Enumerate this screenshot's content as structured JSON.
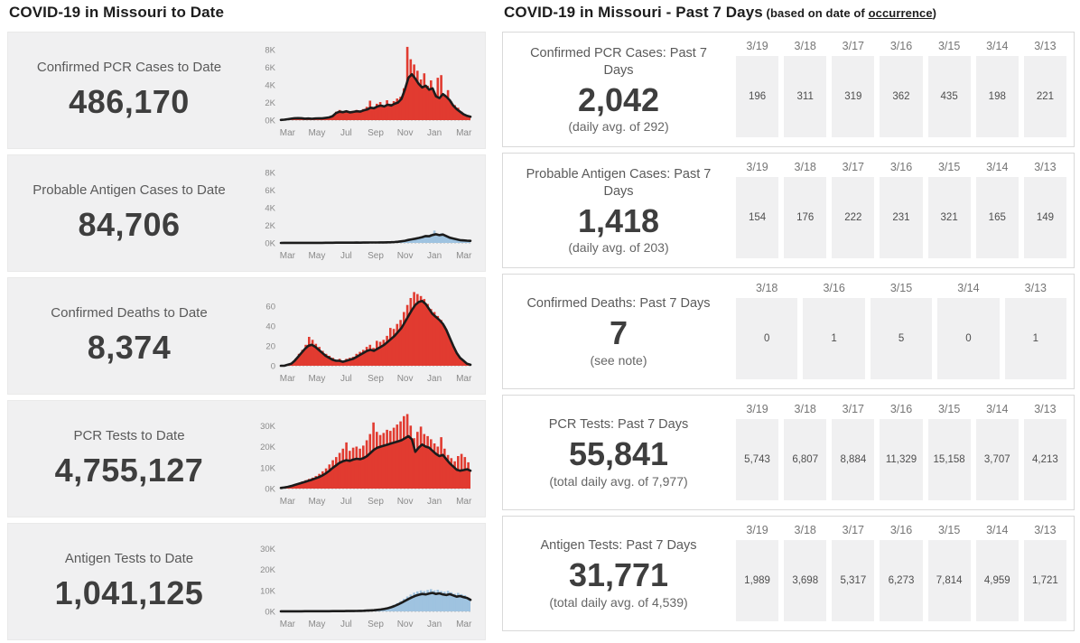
{
  "left_section": {
    "title": "COVID-19 in Missouri to Date",
    "panels": [
      {
        "label": "Confirmed PCR Cases to Date",
        "value": "486,170"
      },
      {
        "label": "Probable Antigen Cases to Date",
        "value": "84,706"
      },
      {
        "label": "Confirmed Deaths to Date",
        "value": "8,374"
      },
      {
        "label": "PCR Tests to Date",
        "value": "4,755,127"
      },
      {
        "label": "Antigen Tests to Date",
        "value": "1,041,125"
      }
    ]
  },
  "right_section": {
    "title": "COVID-19 in Missouri - Past 7 Days",
    "note_prefix": " (based on date of ",
    "note_link": "occurrence",
    "note_suffix": ")",
    "panels": [
      {
        "label": "Confirmed PCR Cases: Past 7 Days",
        "value": "2,042",
        "note": "(daily avg. of 292)",
        "dates": [
          "3/19",
          "3/18",
          "3/17",
          "3/16",
          "3/15",
          "3/14",
          "3/13"
        ],
        "values": [
          "196",
          "311",
          "319",
          "362",
          "435",
          "198",
          "221"
        ]
      },
      {
        "label": "Probable Antigen Cases: Past 7 Days",
        "value": "1,418",
        "note": "(daily avg. of 203)",
        "dates": [
          "3/19",
          "3/18",
          "3/17",
          "3/16",
          "3/15",
          "3/14",
          "3/13"
        ],
        "values": [
          "154",
          "176",
          "222",
          "231",
          "321",
          "165",
          "149"
        ]
      },
      {
        "label": "Confirmed Deaths: Past 7 Days",
        "value": "7",
        "note": "(see note)",
        "dates": [
          "3/18",
          "3/16",
          "3/15",
          "3/14",
          "3/13"
        ],
        "values": [
          "0",
          "1",
          "5",
          "0",
          "1"
        ]
      },
      {
        "label": "PCR Tests: Past 7 Days",
        "value": "55,841",
        "note": "(total daily avg. of 7,977)",
        "dates": [
          "3/19",
          "3/18",
          "3/17",
          "3/16",
          "3/15",
          "3/14",
          "3/13"
        ],
        "values": [
          "5,743",
          "6,807",
          "8,884",
          "11,329",
          "15,158",
          "3,707",
          "4,213"
        ]
      },
      {
        "label": "Antigen Tests: Past 7 Days",
        "value": "31,771",
        "note": "(total daily avg. of 4,539)",
        "dates": [
          "3/19",
          "3/18",
          "3/17",
          "3/16",
          "3/15",
          "3/14",
          "3/13"
        ],
        "values": [
          "1,989",
          "3,698",
          "5,317",
          "6,273",
          "7,814",
          "4,959",
          "1,721"
        ]
      }
    ]
  },
  "colors": {
    "case_red": "#e13b30",
    "antigen_blue": "#9fc3e0",
    "avg_line_black": "#1b1b1b",
    "panel_gray": "#f0f0f1",
    "axis_text_gray": "#8a8a8a"
  },
  "chart_data": [
    {
      "type": "bar",
      "title": "Confirmed PCR Cases to Date (daily cases, Mar 2020 - Mar 2021)",
      "estimated": true,
      "x_ticks": [
        "Mar",
        "May",
        "Jul",
        "Sep",
        "Nov",
        "Jan",
        "Mar"
      ],
      "y_ticks": [
        {
          "v": 0,
          "label": "0K"
        },
        {
          "v": 2000,
          "label": "2K"
        },
        {
          "v": 4000,
          "label": "4K"
        },
        {
          "v": 6000,
          "label": "6K"
        },
        {
          "v": 8000,
          "label": "8K"
        }
      ],
      "ymax": 8800,
      "bar_color": "#e13b30",
      "bars": [
        30,
        60,
        120,
        180,
        230,
        260,
        220,
        170,
        200,
        160,
        190,
        230,
        200,
        280,
        330,
        520,
        950,
        1150,
        1000,
        1100,
        950,
        1050,
        1150,
        1000,
        1250,
        1500,
        2200,
        1450,
        1850,
        2050,
        1650,
        2250,
        1850,
        2150,
        2450,
        2650,
        3600,
        8300,
        6900,
        6300,
        5600,
        4600,
        5300,
        3900,
        4500,
        3100,
        4800,
        5100,
        2900,
        3400,
        2100,
        1700,
        1400,
        950,
        650,
        450
      ],
      "avg_line": [
        25,
        50,
        100,
        160,
        210,
        230,
        210,
        160,
        185,
        155,
        180,
        205,
        195,
        250,
        310,
        450,
        800,
        950,
        900,
        1000,
        880,
        930,
        1000,
        960,
        1100,
        1200,
        1400,
        1350,
        1550,
        1650,
        1550,
        1750,
        1650,
        1850,
        2000,
        2400,
        3500,
        4800,
        5200,
        4700,
        4100,
        3700,
        3900,
        3450,
        3600,
        2700,
        2500,
        2950,
        2650,
        2250,
        1650,
        1250,
        950,
        650,
        480,
        380
      ]
    },
    {
      "type": "bar",
      "title": "Probable Antigen Cases to Date (daily cases, Mar 2020 - Mar 2021)",
      "estimated": true,
      "x_ticks": [
        "Mar",
        "May",
        "Jul",
        "Sep",
        "Nov",
        "Jan",
        "Mar"
      ],
      "y_ticks": [
        {
          "v": 0,
          "label": "0K"
        },
        {
          "v": 2000,
          "label": "2K"
        },
        {
          "v": 4000,
          "label": "4K"
        },
        {
          "v": 6000,
          "label": "6K"
        },
        {
          "v": 8000,
          "label": "8K"
        }
      ],
      "ymax": 8800,
      "bar_color": "#9fc3e0",
      "bars": [
        5,
        8,
        10,
        12,
        15,
        15,
        12,
        10,
        12,
        10,
        12,
        15,
        15,
        18,
        20,
        25,
        30,
        35,
        30,
        35,
        30,
        35,
        40,
        35,
        40,
        50,
        60,
        50,
        60,
        70,
        60,
        80,
        90,
        110,
        150,
        200,
        280,
        380,
        450,
        520,
        600,
        700,
        850,
        800,
        1000,
        1400,
        950,
        1100,
        820,
        620,
        520,
        420,
        330,
        300,
        260,
        240
      ],
      "avg_line": [
        5,
        7,
        9,
        11,
        13,
        14,
        12,
        10,
        11,
        10,
        11,
        13,
        14,
        16,
        18,
        22,
        27,
        31,
        29,
        32,
        29,
        32,
        36,
        33,
        37,
        45,
        54,
        48,
        55,
        64,
        58,
        72,
        82,
        100,
        135,
        180,
        250,
        340,
        410,
        480,
        560,
        650,
        780,
        760,
        900,
        980,
        880,
        950,
        780,
        590,
        500,
        410,
        320,
        290,
        255,
        235
      ]
    },
    {
      "type": "bar",
      "title": "Confirmed Deaths to Date (daily deaths, Mar 2020 - Mar 2021)",
      "estimated": true,
      "x_ticks": [
        "Mar",
        "May",
        "Jul",
        "Sep",
        "Nov",
        "Jan",
        "Mar"
      ],
      "y_ticks": [
        {
          "v": 0,
          "label": "0"
        },
        {
          "v": 20,
          "label": "20"
        },
        {
          "v": 40,
          "label": "40"
        },
        {
          "v": 60,
          "label": "60"
        }
      ],
      "ymax": 78,
      "bar_color": "#e13b30",
      "bars": [
        0,
        0,
        2,
        3,
        7,
        12,
        16,
        21,
        29,
        26,
        22,
        19,
        15,
        12,
        10,
        8,
        6,
        7,
        5,
        7,
        8,
        9,
        12,
        14,
        16,
        19,
        21,
        18,
        25,
        24,
        26,
        30,
        38,
        37,
        42,
        46,
        54,
        61,
        68,
        74,
        72,
        70,
        67,
        62,
        57,
        54,
        50,
        46,
        40,
        32,
        24,
        16,
        10,
        6,
        3,
        1
      ],
      "avg_line": [
        0,
        0,
        1,
        2,
        5,
        9,
        13,
        17,
        20,
        21,
        19,
        16,
        13,
        10,
        8,
        6,
        5,
        5,
        4,
        5,
        6,
        7,
        9,
        11,
        13,
        15,
        16,
        15,
        17,
        19,
        21,
        24,
        27,
        30,
        34,
        38,
        44,
        50,
        56,
        61,
        64,
        65,
        62,
        57,
        52,
        49,
        46,
        42,
        36,
        28,
        20,
        13,
        8,
        5,
        2,
        1
      ]
    },
    {
      "type": "bar",
      "title": "PCR Tests to Date (daily tests, Mar 2020 - Mar 2021)",
      "estimated": true,
      "x_ticks": [
        "Mar",
        "May",
        "Jul",
        "Sep",
        "Nov",
        "Jan",
        "Mar"
      ],
      "y_ticks": [
        {
          "v": 0,
          "label": "0K"
        },
        {
          "v": 10000,
          "label": "10K"
        },
        {
          "v": 20000,
          "label": "20K"
        },
        {
          "v": 30000,
          "label": "30K"
        }
      ],
      "ymax": 37000,
      "bar_color": "#e13b30",
      "bars": [
        400,
        700,
        1100,
        1600,
        2200,
        2800,
        3400,
        4000,
        4600,
        5200,
        6000,
        7000,
        8200,
        9600,
        11500,
        13500,
        15000,
        17000,
        19000,
        22000,
        18000,
        19500,
        20000,
        19000,
        20500,
        23000,
        26000,
        31500,
        27000,
        25500,
        26500,
        28000,
        27500,
        29000,
        30500,
        32000,
        34500,
        35500,
        30000,
        24000,
        27000,
        29500,
        26000,
        25000,
        23500,
        21500,
        20000,
        24500,
        19000,
        16000,
        14500,
        13000,
        15500,
        16500,
        15000,
        12500
      ],
      "avg_line": [
        300,
        500,
        800,
        1200,
        1700,
        2200,
        2700,
        3200,
        3700,
        4200,
        4800,
        5400,
        6200,
        7200,
        8400,
        9800,
        11000,
        12200,
        13000,
        13500,
        13200,
        13800,
        14200,
        14000,
        14500,
        15500,
        17000,
        18500,
        19500,
        20000,
        20500,
        21000,
        21500,
        22000,
        22500,
        23000,
        24000,
        25000,
        23500,
        17500,
        19500,
        21000,
        20000,
        19500,
        18000,
        16500,
        15500,
        16000,
        14000,
        12000,
        10500,
        9000,
        8500,
        8800,
        9200,
        8500
      ]
    },
    {
      "type": "bar",
      "title": "Antigen Tests to Date (daily tests, Mar 2020 - Mar 2021)",
      "estimated": true,
      "x_ticks": [
        "Mar",
        "May",
        "Jul",
        "Sep",
        "Nov",
        "Jan",
        "Mar"
      ],
      "y_ticks": [
        {
          "v": 0,
          "label": "0K"
        },
        {
          "v": 10000,
          "label": "10K"
        },
        {
          "v": 20000,
          "label": "20K"
        },
        {
          "v": 30000,
          "label": "30K"
        }
      ],
      "ymax": 37000,
      "bar_color": "#9fc3e0",
      "bars": [
        35,
        40,
        48,
        54,
        60,
        66,
        72,
        78,
        84,
        90,
        96,
        102,
        108,
        114,
        120,
        132,
        144,
        156,
        168,
        186,
        204,
        228,
        264,
        312,
        372,
        456,
        564,
        700,
        860,
        1080,
        1380,
        1800,
        2400,
        3120,
        3960,
        4920,
        6000,
        7100,
        8000,
        8900,
        9500,
        10000,
        9700,
        10200,
        10600,
        10000,
        10300,
        9700,
        9400,
        9800,
        9100,
        8400,
        8800,
        8200,
        7700,
        6600
      ],
      "avg_line": [
        30,
        35,
        40,
        45,
        50,
        55,
        60,
        65,
        70,
        75,
        80,
        85,
        90,
        95,
        100,
        110,
        120,
        130,
        140,
        155,
        170,
        190,
        220,
        260,
        310,
        380,
        470,
        580,
        720,
        900,
        1150,
        1500,
        2000,
        2600,
        3300,
        4100,
        5000,
        5900,
        6700,
        7400,
        7900,
        8300,
        8100,
        8500,
        8800,
        8300,
        8600,
        8100,
        7800,
        8200,
        7600,
        7000,
        7300,
        6800,
        6400,
        5500
      ]
    }
  ]
}
